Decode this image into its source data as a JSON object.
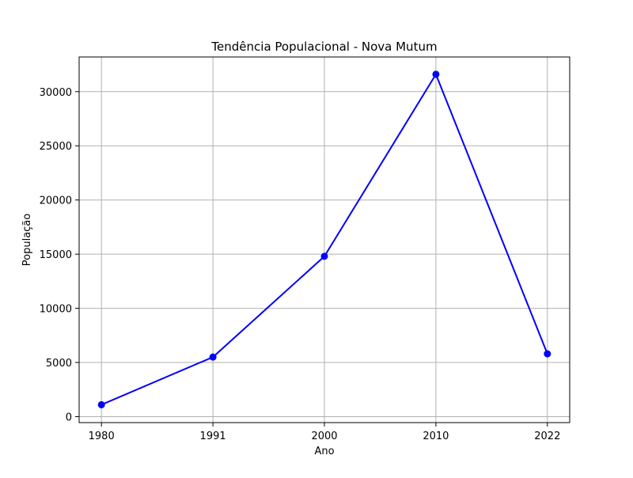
{
  "chart_data": {
    "type": "line",
    "title": "Tendência Populacional - Nova Mutum",
    "xlabel": "Ano",
    "ylabel": "População",
    "categories": [
      "1980",
      "1991",
      "2000",
      "2010",
      "2022"
    ],
    "series": [
      {
        "values": [
          1100,
          5500,
          14800,
          31600,
          5800
        ],
        "color": "#0000ff",
        "marker": "circle"
      }
    ],
    "ylim": [
      -550,
      33200
    ],
    "yticks": [
      0,
      5000,
      10000,
      15000,
      20000,
      25000,
      30000
    ],
    "ytick_labels": [
      "0",
      "5000",
      "10000",
      "15000",
      "20000",
      "25000",
      "30000"
    ],
    "grid": true
  }
}
